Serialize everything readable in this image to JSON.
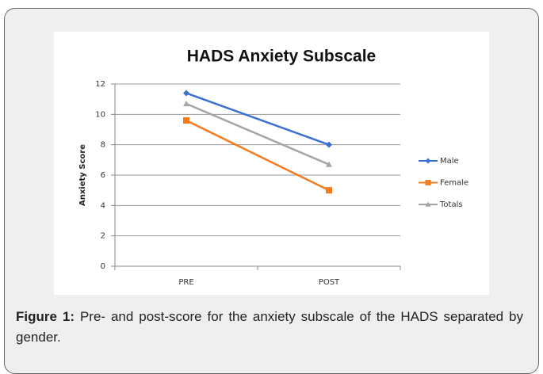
{
  "chart_data": {
    "type": "line",
    "title": "HADS Anxiety Subscale",
    "y_label": "Anxiety Score",
    "categories": [
      "PRE",
      "POST"
    ],
    "series": [
      {
        "name": "Male",
        "color": "#3c6fd4",
        "marker": "diamond",
        "values": [
          11.4,
          8.0
        ]
      },
      {
        "name": "Female",
        "color": "#f47b20",
        "marker": "square",
        "values": [
          9.6,
          5.0
        ]
      },
      {
        "name": "Totals",
        "color": "#a6a6a6",
        "marker": "triangle",
        "values": [
          10.7,
          6.7
        ]
      }
    ],
    "ylim": [
      0,
      12
    ],
    "yticks": [
      0,
      2,
      4,
      6,
      8,
      10,
      12
    ],
    "grid": true,
    "legend": "right"
  },
  "caption": {
    "label": "Figure 1:",
    "text": "Pre- and post-score for the anxiety subscale of the HADS separated by gender."
  }
}
